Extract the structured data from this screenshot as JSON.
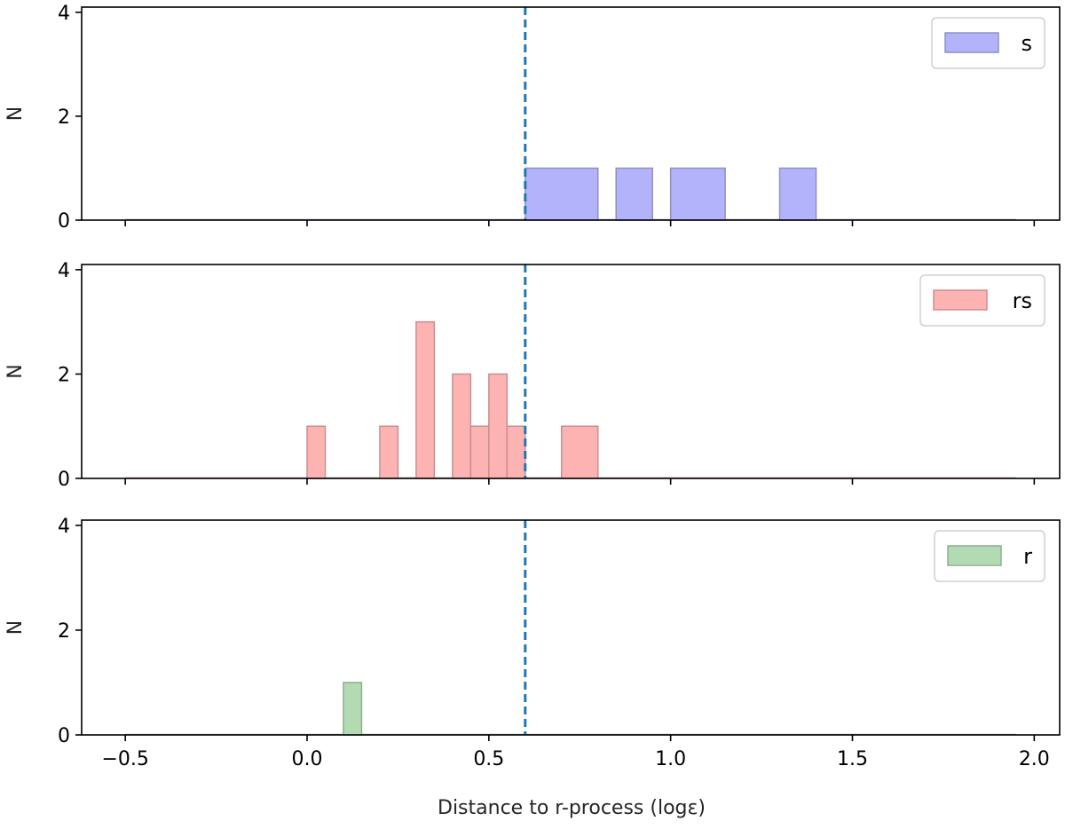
{
  "chart_data": {
    "type": "histogram",
    "xlabel": "Distance to r-process (logε)",
    "xlim": [
      -0.62,
      2.07
    ],
    "xticks": [
      -0.5,
      0.0,
      0.5,
      1.0,
      1.5,
      2.0
    ],
    "xtick_labels": [
      "−0.5",
      "0.0",
      "0.5",
      "1.0",
      "1.5",
      "2.0"
    ],
    "bin_range": [
      -0.5,
      1.95
    ],
    "reference_line": {
      "x": 0.6,
      "style": "dashed",
      "color": "#1f77b4"
    },
    "panels": [
      {
        "name": "s",
        "legend": "s",
        "color": "#b3b3fb",
        "edge_color": "#8f8fc4",
        "ylabel": "N",
        "ylim": [
          0,
          4.1
        ],
        "yticks": [
          0,
          2,
          4
        ],
        "bins": [
          {
            "start": 0.6,
            "end": 0.8,
            "count": 1
          },
          {
            "start": 0.85,
            "end": 0.95,
            "count": 1
          },
          {
            "start": 1.0,
            "end": 1.15,
            "count": 1
          },
          {
            "start": 1.3,
            "end": 1.4,
            "count": 1
          }
        ]
      },
      {
        "name": "rs",
        "legend": "rs",
        "color": "#feb3b3",
        "edge_color": "#c98f8f",
        "ylabel": "N",
        "ylim": [
          0,
          4.1
        ],
        "yticks": [
          0,
          2,
          4
        ],
        "bins": [
          {
            "start": 0.0,
            "end": 0.05,
            "count": 1
          },
          {
            "start": 0.2,
            "end": 0.25,
            "count": 1
          },
          {
            "start": 0.3,
            "end": 0.35,
            "count": 3
          },
          {
            "start": 0.4,
            "end": 0.45,
            "count": 2
          },
          {
            "start": 0.45,
            "end": 0.5,
            "count": 1
          },
          {
            "start": 0.5,
            "end": 0.55,
            "count": 2
          },
          {
            "start": 0.55,
            "end": 0.6,
            "count": 1
          },
          {
            "start": 0.7,
            "end": 0.8,
            "count": 1
          }
        ]
      },
      {
        "name": "r",
        "legend": "r",
        "color": "#b3dbb3",
        "edge_color": "#8fae8f",
        "ylabel": "N",
        "ylim": [
          0,
          4.1
        ],
        "yticks": [
          0,
          2,
          4
        ],
        "bins": [
          {
            "start": 0.1,
            "end": 0.15,
            "count": 1
          }
        ]
      }
    ]
  }
}
